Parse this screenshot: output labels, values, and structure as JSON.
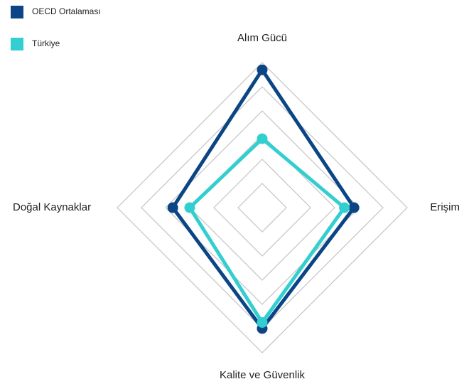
{
  "chart_data": {
    "type": "radar",
    "categories": [
      "Alım Gücü",
      "Erişim",
      "Kalite ve Güvenlik",
      "Doğal Kaynaklar"
    ],
    "series": [
      {
        "name": "OECD Ortalaması",
        "color": "#0b4585",
        "values": [
          5.7,
          3.8,
          5.0,
          3.7
        ]
      },
      {
        "name": "Türkiye",
        "color": "#33cfd0",
        "values": [
          2.85,
          3.4,
          4.75,
          3.0
        ]
      }
    ],
    "ylim": [
      0,
      6
    ],
    "yticks": [
      1,
      2,
      3,
      4,
      5,
      6
    ],
    "grid": true
  }
}
